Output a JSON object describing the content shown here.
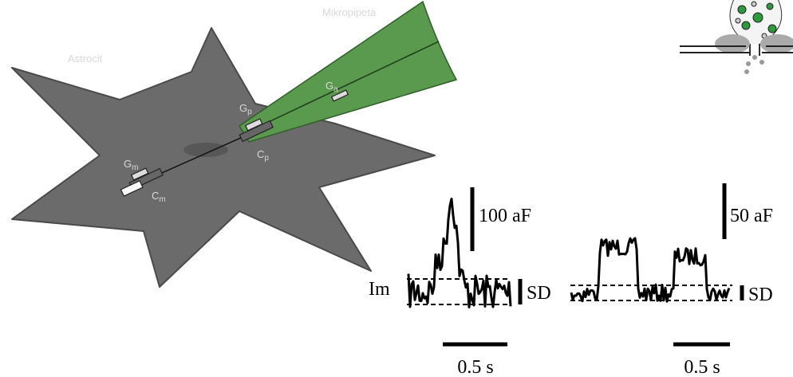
{
  "diagram": {
    "pipette_label": "Mikropipeta",
    "cell_label": "Astrocit",
    "elements": [
      {
        "main": "G",
        "sub": "a"
      },
      {
        "main": "G",
        "sub": "p"
      },
      {
        "main": "C",
        "sub": "p"
      },
      {
        "main": "G",
        "sub": "m"
      },
      {
        "main": "C",
        "sub": "m"
      }
    ],
    "traces": {
      "current_label": "Im",
      "sd_labels": [
        "SD",
        "SD"
      ],
      "capacitance_scales": [
        "100 aF",
        "50 aF"
      ],
      "time_scales": [
        "0.5 s",
        "0.5 s"
      ]
    }
  }
}
